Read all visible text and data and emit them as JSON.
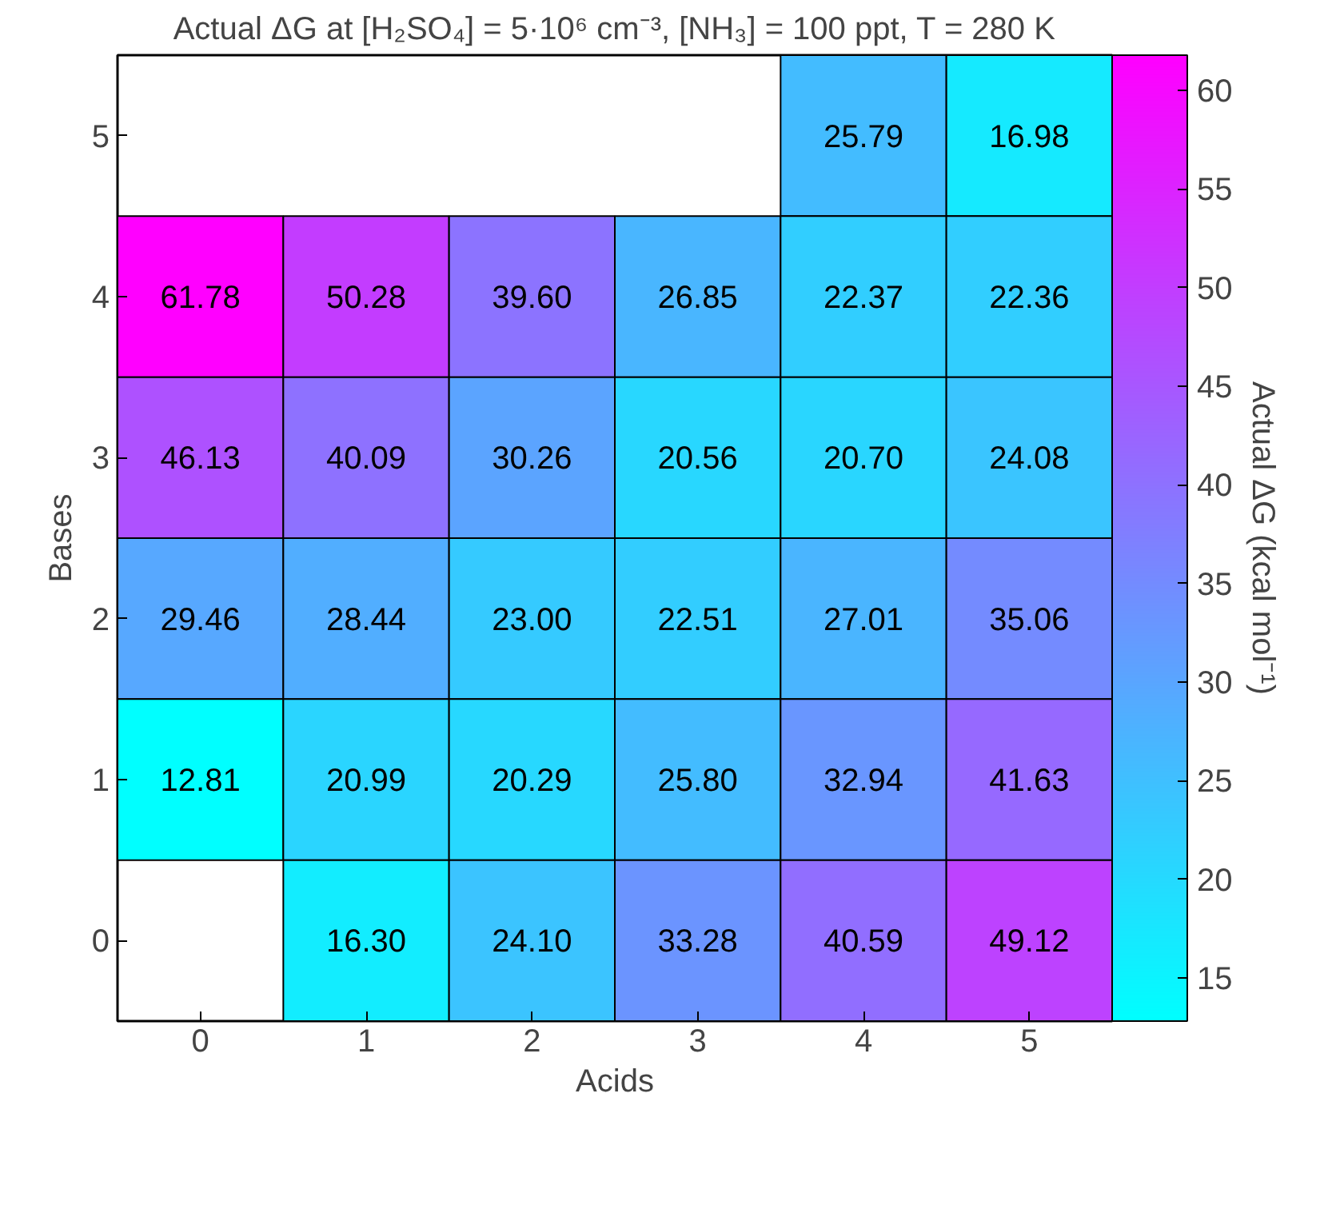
{
  "chart_data": {
    "type": "heatmap",
    "title": "Actual ΔG at [H₂SO₄] = 5·10⁶ cm⁻³, [NH₃] = 100 ppt, T = 280 K",
    "xlabel": "Acids",
    "ylabel": "Bases",
    "clabel": "Actual ΔG (kcal mol⁻¹)",
    "categories": [
      "0",
      "1",
      "2",
      "3",
      "4",
      "5"
    ],
    "y_categories": [
      "5",
      "4",
      "3",
      "2",
      "1",
      "0"
    ],
    "cells": [
      [
        null,
        null,
        null,
        null,
        25.79,
        16.98
      ],
      [
        61.78,
        50.28,
        39.6,
        26.85,
        22.37,
        22.36
      ],
      [
        46.13,
        40.09,
        30.26,
        20.56,
        20.7,
        24.08
      ],
      [
        29.46,
        28.44,
        23.0,
        22.51,
        27.01,
        35.06
      ],
      [
        12.81,
        20.99,
        20.29,
        25.8,
        32.94,
        41.63
      ],
      [
        null,
        16.3,
        24.1,
        33.28,
        40.59,
        49.12
      ]
    ],
    "cell_labels": [
      [
        null,
        null,
        null,
        null,
        "25.79",
        "16.98"
      ],
      [
        "61.78",
        "50.28",
        "39.60",
        "26.85",
        "22.37",
        "22.36"
      ],
      [
        "46.13",
        "40.09",
        "30.26",
        "20.56",
        "20.70",
        "24.08"
      ],
      [
        "29.46",
        "28.44",
        "23.00",
        "22.51",
        "27.01",
        "35.06"
      ],
      [
        "12.81",
        "20.99",
        "20.29",
        "25.80",
        "32.94",
        "41.63"
      ],
      [
        null,
        "16.30",
        "24.10",
        "33.28",
        "40.59",
        "49.12"
      ]
    ],
    "clim": [
      12.81,
      61.78
    ],
    "cticks": [
      15,
      20,
      25,
      30,
      35,
      40,
      45,
      50,
      55,
      60
    ],
    "data_labels": true
  }
}
